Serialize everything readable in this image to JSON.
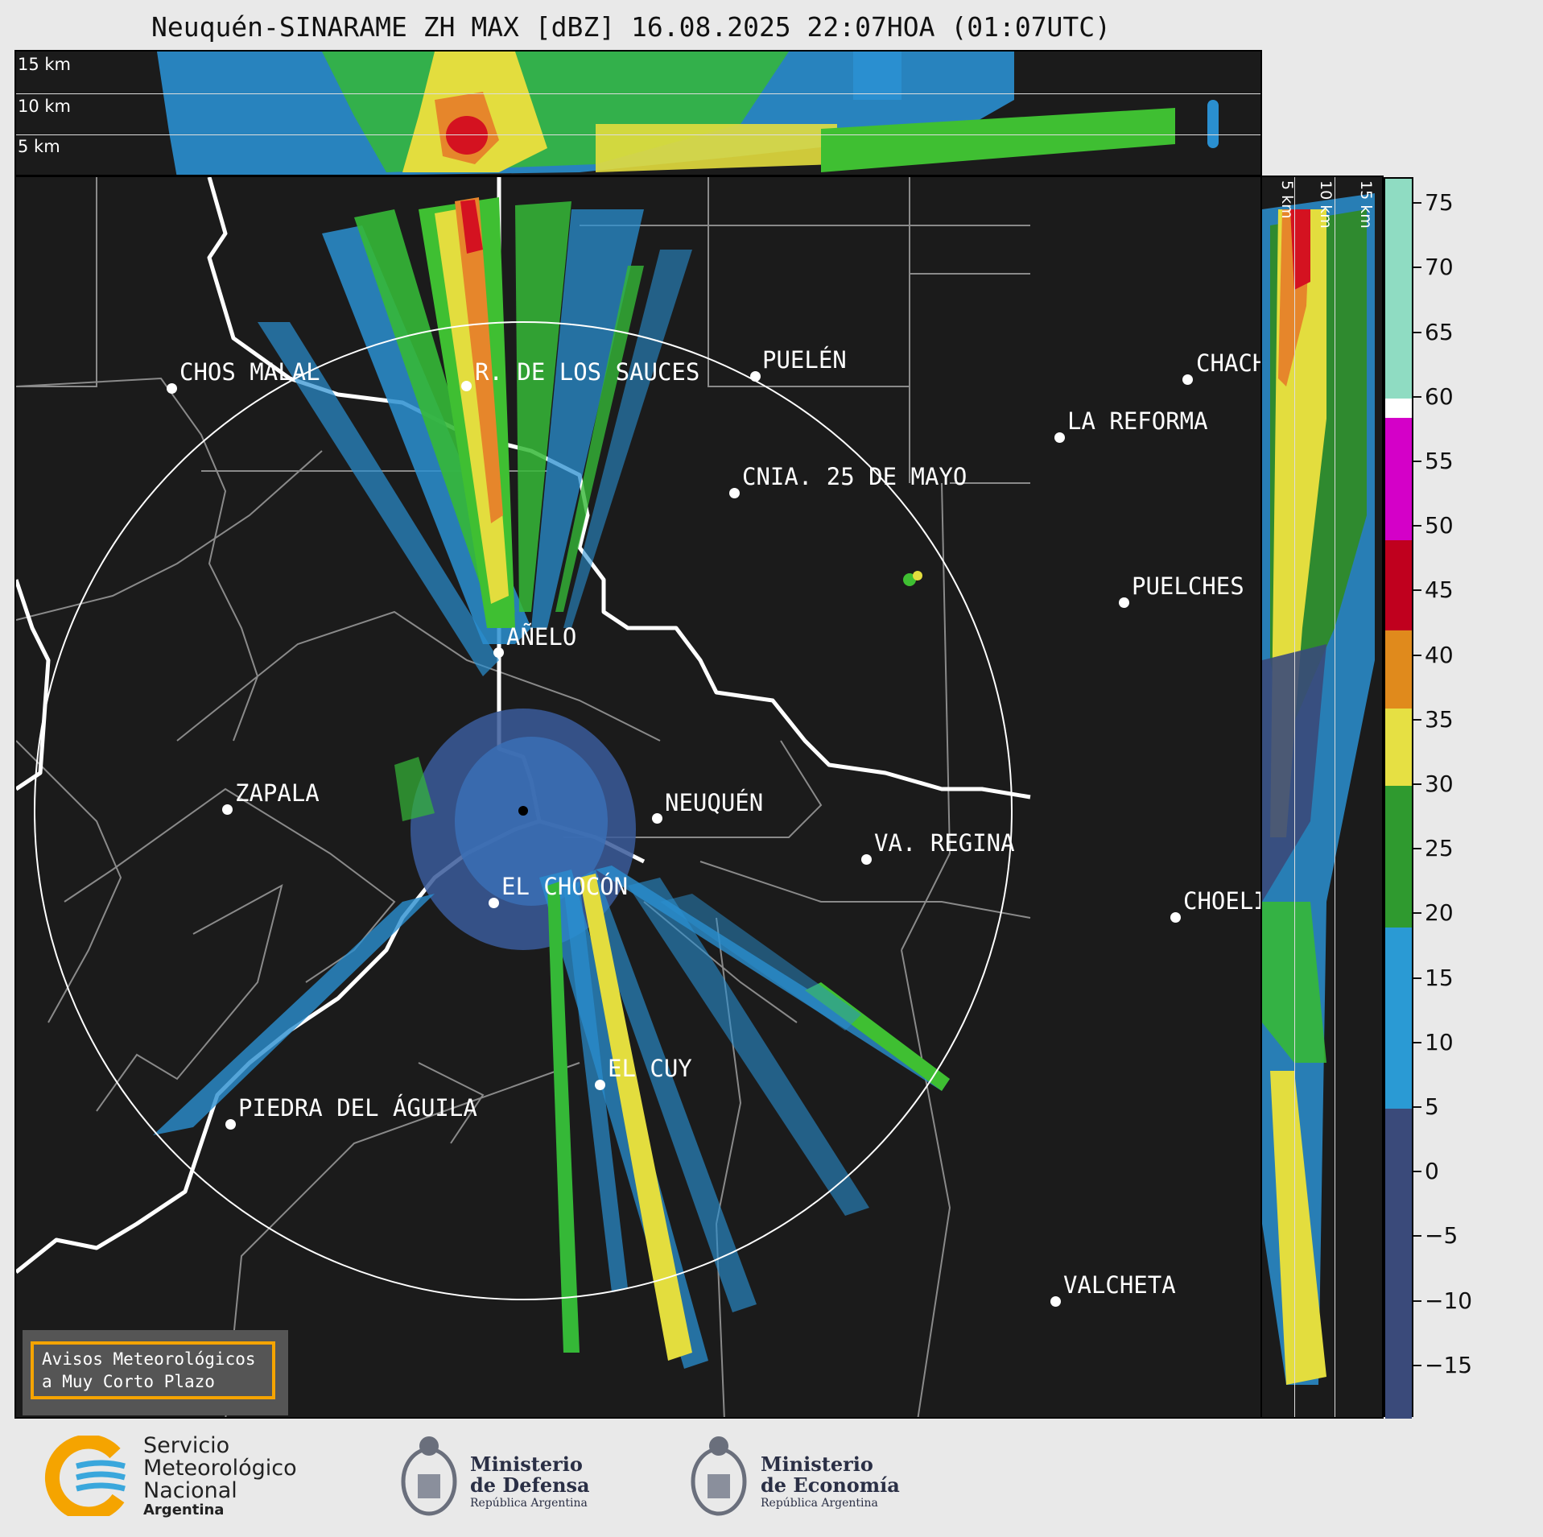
{
  "header": {
    "title": "Neuquén-SINARAME ZH MAX [dBZ] 16.08.2025 22:07HOA (01:07UTC)"
  },
  "top_panel": {
    "height_labels": [
      "15 km",
      "10 km",
      "5 km"
    ]
  },
  "side_panel": {
    "height_labels": [
      "5 km",
      "10 km",
      "15 km"
    ]
  },
  "cities": [
    {
      "name": "CHOS MALAL"
    },
    {
      "name": "R. DE LOS SAUCES"
    },
    {
      "name": "PUELÉN"
    },
    {
      "name": "CHACH"
    },
    {
      "name": "LA REFORMA"
    },
    {
      "name": "CNIA. 25 DE MAYO"
    },
    {
      "name": "PUELCHES"
    },
    {
      "name": "AÑELO"
    },
    {
      "name": "ZAPALA"
    },
    {
      "name": "NEUQUÉN"
    },
    {
      "name": "VA. REGINA"
    },
    {
      "name": "EL CHOCÓN"
    },
    {
      "name": "CHOELI"
    },
    {
      "name": "EL CUY"
    },
    {
      "name": "PIEDRA DEL ÁGUILA"
    },
    {
      "name": "VALCHETA"
    }
  ],
  "colorbar": {
    "unit": "dBZ",
    "ticks": [
      "75",
      "70",
      "65",
      "60",
      "55",
      "50",
      "45",
      "40",
      "35",
      "30",
      "25",
      "20",
      "15",
      "10",
      "5",
      "0",
      "−5",
      "−10",
      "−15"
    ],
    "bands": [
      {
        "from": 60,
        "to": 77,
        "color": "#8fdcc2"
      },
      {
        "from": 58.5,
        "to": 60,
        "color": "#ffffff"
      },
      {
        "from": 49,
        "to": 58.5,
        "color": "#d400c8"
      },
      {
        "from": 42,
        "to": 49,
        "color": "#c0001e"
      },
      {
        "from": 36,
        "to": 42,
        "color": "#e08a1c"
      },
      {
        "from": 30,
        "to": 36,
        "color": "#e6e043"
      },
      {
        "from": 19,
        "to": 30,
        "color": "#2f9a2f"
      },
      {
        "from": 5,
        "to": 19,
        "color": "#2a9ad4"
      },
      {
        "from": -19,
        "to": 5,
        "color": "#3a4a7a"
      }
    ]
  },
  "notice": {
    "line1": "Avisos Meteorológicos",
    "line2": "a Muy Corto Plazo"
  },
  "footer": {
    "smn_line1": "Servicio",
    "smn_line2": "Meteorológico",
    "smn_line3": "Nacional",
    "smn_line4": "Argentina",
    "defensa_line1": "Ministerio",
    "defensa_line2": "de Defensa",
    "defensa_line3": "República Argentina",
    "economia_line1": "Ministerio",
    "economia_line2": "de Economía",
    "economia_line3": "República Argentina"
  }
}
